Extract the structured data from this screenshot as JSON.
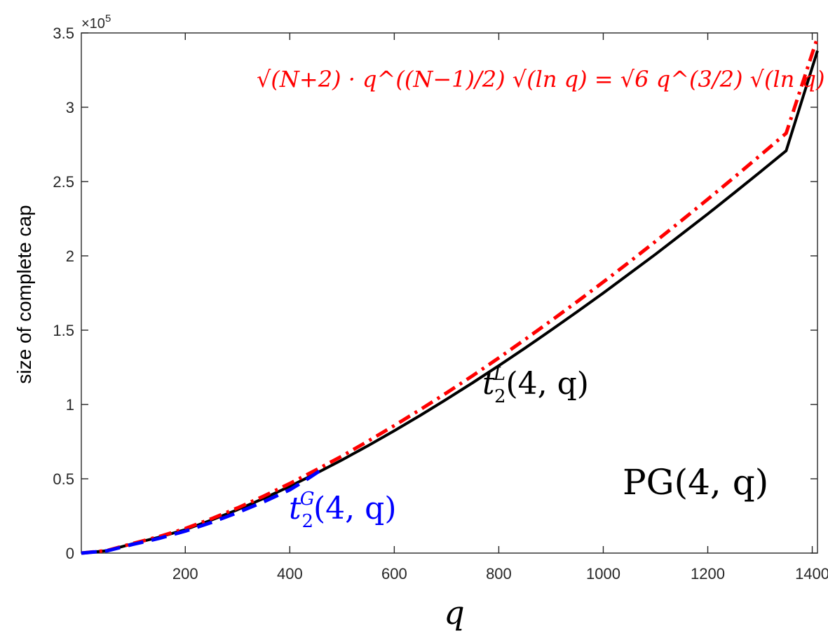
{
  "chart_data": {
    "type": "line",
    "xlim": [
      1,
      1410
    ],
    "ylim": [
      0,
      350000
    ],
    "x_ticks": [
      200,
      400,
      600,
      800,
      1000,
      1200,
      1400
    ],
    "x_tick_labels": [
      "200",
      "400",
      "600",
      "800",
      "1000",
      "1200",
      "1400"
    ],
    "y_ticks": [
      0,
      50000,
      100000,
      150000,
      200000,
      250000,
      300000,
      350000
    ],
    "y_tick_labels": [
      "0",
      "0.5",
      "1",
      "1.5",
      "2",
      "2.5",
      "3",
      "3.5"
    ],
    "y_multiplier": {
      "base": "×10",
      "exp": "5"
    },
    "xlabel": "q",
    "ylabel": "size of complete cap",
    "grid": false,
    "legend": "none",
    "plot_label": "PG(4, q)",
    "series": [
      {
        "id": "tL",
        "label": {
          "base": "t",
          "sub": "2",
          "sup": "L",
          "args": "(4, q)"
        },
        "color": "#000000",
        "style": "solid",
        "x": [
          1,
          50,
          100,
          150,
          200,
          250,
          300,
          350,
          400,
          450,
          500,
          550,
          600,
          650,
          700,
          750,
          800,
          850,
          900,
          950,
          1000,
          1050,
          1100,
          1150,
          1200,
          1250,
          1300,
          1350,
          1410
        ],
        "y": [
          0,
          1600,
          6300,
          10700,
          15800,
          22200,
          29200,
          36800,
          44900,
          53600,
          62700,
          72300,
          82300,
          92700,
          103500,
          114600,
          126100,
          137900,
          150000,
          162400,
          175000,
          188000,
          201100,
          214600,
          228200,
          242200,
          256300,
          270700,
          338000
        ]
      },
      {
        "id": "bound",
        "label": {
          "text": "√(N+2) · q^((N−1)/2) √(ln q) = √6 q^(3/2) √(ln q)"
        },
        "color": "#ff0000",
        "style": "dashdot",
        "x": [
          1,
          50,
          100,
          150,
          200,
          250,
          300,
          350,
          400,
          450,
          500,
          550,
          600,
          650,
          700,
          750,
          800,
          850,
          900,
          950,
          1000,
          1050,
          1100,
          1150,
          1200,
          1250,
          1300,
          1350,
          1410
        ],
        "y": [
          0,
          1700,
          6500,
          11100,
          16500,
          23100,
          30400,
          38300,
          46800,
          55900,
          65300,
          75400,
          85800,
          96600,
          107800,
          119400,
          131300,
          143700,
          156300,
          169200,
          182400,
          195900,
          209700,
          223800,
          238100,
          252700,
          267500,
          282500,
          347000
        ]
      },
      {
        "id": "tG",
        "label": {
          "base": "t",
          "sub": "2",
          "sup": "G",
          "args": "(4, q)"
        },
        "color": "#0000ff",
        "style": "dashed",
        "x": [
          1,
          50,
          100,
          150,
          200,
          250,
          300,
          350,
          400,
          430,
          460
        ],
        "y": [
          0,
          1500,
          5900,
          9900,
          14800,
          20600,
          27200,
          34500,
          42600,
          49000,
          56000
        ]
      }
    ]
  }
}
